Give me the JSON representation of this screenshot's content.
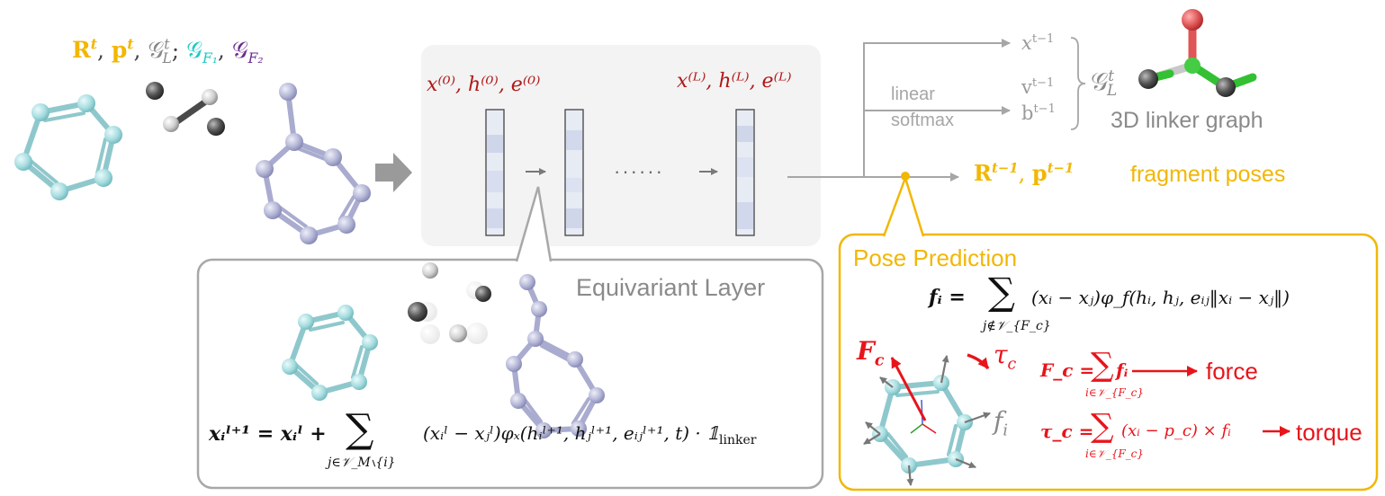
{
  "inputs": {
    "R_sym": "R",
    "R_sup": "t",
    "p_sym": "p",
    "p_sup": "t",
    "GL_sym": "𝒢",
    "GL_sub": "L",
    "GL_sup": "t",
    "GF1_sym": "𝒢",
    "GF1_sub": "F₁",
    "GF2_sym": "𝒢",
    "GF2_sub": "F₂"
  },
  "network": {
    "first_layer_label": "x⁽⁰⁾, h⁽⁰⁾, e⁽⁰⁾",
    "last_layer_label": "x⁽ᴸ⁾, h⁽ᴸ⁾, e⁽ᴸ⁾",
    "dots": "······"
  },
  "outputs": {
    "linear_label": "linear",
    "softmax_label": "softmax",
    "x_out": "x",
    "v_out": "v",
    "b_out": "b",
    "t_minus_1": "t−1",
    "graph_sym": "𝒢",
    "graph_sub": "L",
    "graph_sup": "t",
    "linker_graph_label": "3D linker graph",
    "pose_R": "R",
    "pose_p": "p",
    "pose_sup": "t−1",
    "fragment_poses_label": "fragment poses"
  },
  "equivariant_layer": {
    "title": "Equivariant Layer",
    "formula_lhs": "xᵢˡ⁺¹ = xᵢˡ +",
    "formula_sum": "∑",
    "formula_sum_sub": "j∈𝒱_M∖{i}",
    "formula_rhs": "(xᵢˡ − xⱼˡ)φₓ(hᵢˡ⁺¹, hⱼˡ⁺¹, eᵢⱼˡ⁺¹, t) · 𝟙",
    "formula_indicator_sub": "linker"
  },
  "pose_prediction": {
    "title": "Pose Prediction",
    "fi_lhs": "fᵢ =",
    "fi_sum": "∑",
    "fi_sum_sub": "j∉𝒱_{F_c}",
    "fi_rhs": "(xᵢ − xⱼ)φ_f(hᵢ, hⱼ, eᵢⱼ‖xᵢ − xⱼ‖)",
    "Fc_label": "F",
    "Fc_sub": "c",
    "tau_label": "τ",
    "tau_sub": "c",
    "fi_label": "f",
    "fi_label_sub": "i",
    "force_eq_lhs": "F_c =",
    "force_eq_sum": "∑",
    "force_eq_sub": "i∈𝒱_{F_c}",
    "force_eq_rhs": "fᵢ",
    "force_label": "force",
    "torque_eq_lhs": "τ_c =",
    "torque_eq_sum": "∑",
    "torque_eq_sub": "i∈𝒱_{F_c}",
    "torque_eq_rhs": "(xᵢ − p_c) × fᵢ",
    "torque_label": "torque"
  },
  "colors": {
    "gold": "#F2B705",
    "cyan": "#1FC9C3",
    "purple": "#6A2C91",
    "darkred": "#B01818",
    "red": "#E8141B",
    "gray": "#A0A0A0",
    "teal_atom": "#A8DDE0",
    "lavender_atom": "#B4B6D6"
  }
}
